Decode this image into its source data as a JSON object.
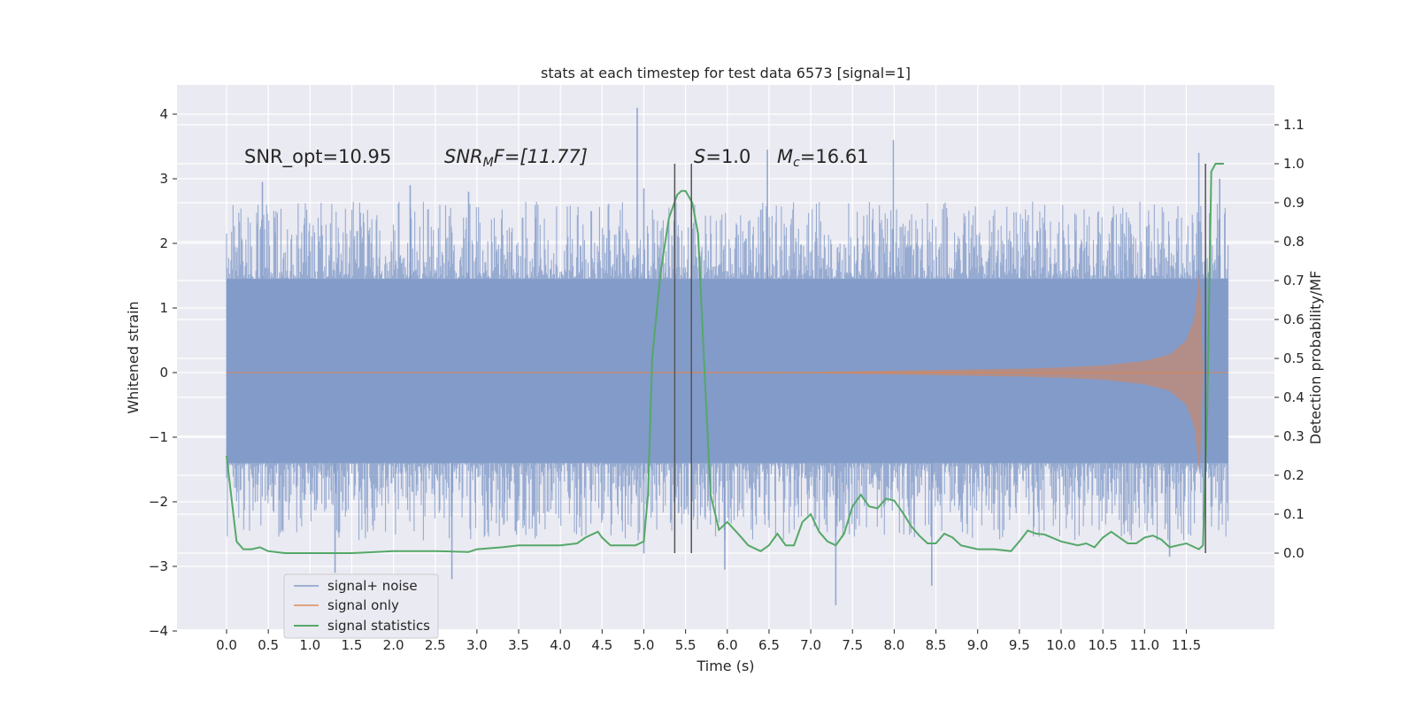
{
  "chart_data": {
    "type": "line",
    "title": "stats at each timestep for test data 6573 [signal=1]",
    "xlabel": "Time (s)",
    "ylabel": "Whitened strain",
    "ylabel_right": "Detection probability/MF",
    "xlim": [
      -0.5,
      12.7
    ],
    "ylim": [
      -4.0,
      4.4
    ],
    "ylim_right": [
      -0.2,
      1.2
    ],
    "x_ticks": [
      0.0,
      0.5,
      1.0,
      1.5,
      2.0,
      2.5,
      3.0,
      3.5,
      4.0,
      4.5,
      5.0,
      5.5,
      6.0,
      6.5,
      7.0,
      7.5,
      8.0,
      8.5,
      9.0,
      9.5,
      10.0,
      10.5,
      11.0,
      11.5
    ],
    "x_tick_labels": [
      "0.0",
      "0.5",
      "1.0",
      "1.5",
      "2.0",
      "2.5",
      "3.0",
      "3.5",
      "4.0",
      "4.5",
      "5.0",
      "5.5",
      "6.0",
      "6.5",
      "7.0",
      "7.5",
      "8.0",
      "8.5",
      "9.0",
      "9.5",
      "10.0",
      "10.5",
      "11.0",
      "11.5"
    ],
    "y_ticks": [
      -4,
      -3,
      -2,
      -1,
      0,
      1,
      2,
      3,
      4
    ],
    "y_tick_labels": [
      "−4",
      "−3",
      "−2",
      "−1",
      "0",
      "1",
      "2",
      "3",
      "4"
    ],
    "y_right_ticks": [
      0.0,
      0.1,
      0.2,
      0.3,
      0.4,
      0.5,
      0.6,
      0.7,
      0.8,
      0.9,
      1.0,
      1.1
    ],
    "y_right_tick_labels": [
      "0.0",
      "0.1",
      "0.2",
      "0.3",
      "0.4",
      "0.5",
      "0.6",
      "0.7",
      "0.8",
      "0.9",
      "1.0",
      "1.1"
    ],
    "grid": true,
    "legend_position": "lower-left",
    "annotations": {
      "snr_opt": "SNR_opt=10.95",
      "snr_mf_main": "SNR",
      "snr_mf_sub": "M",
      "snr_mf_rest": "F=[11.77]",
      "s_main": "S",
      "s_rest": "=1.0",
      "mc_main": "M",
      "mc_sub": "c",
      "mc_rest": "=16.61"
    },
    "vertical_markers": [
      {
        "x": 5.37,
        "y_range": [
          0.0,
          1.0
        ]
      },
      {
        "x": 5.57,
        "y_range": [
          0.0,
          1.0
        ]
      },
      {
        "x": 11.73,
        "y_range": [
          0.0,
          1.0
        ]
      }
    ],
    "series": [
      {
        "name": "signal+ noise",
        "axis": "left",
        "color": "#7b95c6",
        "x_range": [
          0.0,
          12.0
        ],
        "core_envelope": [
          -1.4,
          1.45
        ],
        "notable_peaks": [
          {
            "x": 0.43,
            "y": 2.95
          },
          {
            "x": 2.2,
            "y": 2.9
          },
          {
            "x": 2.9,
            "y": 2.8
          },
          {
            "x": 4.92,
            "y": 4.1
          },
          {
            "x": 5.0,
            "y": 2.85
          },
          {
            "x": 6.48,
            "y": 3.45
          },
          {
            "x": 7.99,
            "y": 3.6
          },
          {
            "x": 11.65,
            "y": 3.4
          },
          {
            "x": 11.9,
            "y": 3.0
          },
          {
            "x": 1.3,
            "y": -3.1
          },
          {
            "x": 2.7,
            "y": -3.2
          },
          {
            "x": 5.0,
            "y": -2.8
          },
          {
            "x": 5.97,
            "y": -3.05
          },
          {
            "x": 7.3,
            "y": -3.6
          },
          {
            "x": 8.45,
            "y": -3.3
          },
          {
            "x": 11.3,
            "y": -2.85
          }
        ]
      },
      {
        "name": "signal only",
        "axis": "left",
        "color": "#dd8452",
        "x": [
          0.0,
          7.0,
          8.0,
          9.0,
          9.5,
          10.0,
          10.5,
          11.0,
          11.3,
          11.5,
          11.6,
          11.66,
          11.7
        ],
        "envelope": [
          0.0,
          0.01,
          0.03,
          0.05,
          0.06,
          0.08,
          0.11,
          0.18,
          0.28,
          0.5,
          0.85,
          1.65,
          0.0
        ]
      },
      {
        "name": "signal statistics",
        "axis": "right",
        "color": "#55a868",
        "x": [
          0.0,
          0.12,
          0.2,
          0.3,
          0.4,
          0.5,
          0.7,
          0.9,
          1.0,
          1.3,
          1.5,
          1.7,
          2.0,
          2.5,
          2.7,
          2.9,
          3.0,
          3.3,
          3.5,
          3.7,
          4.0,
          4.2,
          4.3,
          4.45,
          4.5,
          4.6,
          4.7,
          4.9,
          5.0,
          5.05,
          5.1,
          5.2,
          5.3,
          5.4,
          5.45,
          5.5,
          5.58,
          5.65,
          5.72,
          5.8,
          5.9,
          5.95,
          6.0,
          6.15,
          6.25,
          6.4,
          6.5,
          6.6,
          6.7,
          6.8,
          6.9,
          7.0,
          7.1,
          7.2,
          7.3,
          7.4,
          7.5,
          7.6,
          7.7,
          7.8,
          7.9,
          8.0,
          8.1,
          8.2,
          8.3,
          8.4,
          8.5,
          8.6,
          8.7,
          8.8,
          9.0,
          9.2,
          9.4,
          9.5,
          9.6,
          9.7,
          9.8,
          10.0,
          10.1,
          10.2,
          10.3,
          10.4,
          10.5,
          10.6,
          10.7,
          10.8,
          10.9,
          11.0,
          11.1,
          11.2,
          11.3,
          11.4,
          11.5,
          11.6,
          11.65,
          11.7,
          11.75,
          11.8,
          11.85,
          11.95
        ],
        "values": [
          0.25,
          0.03,
          0.01,
          0.01,
          0.015,
          0.005,
          0.0,
          0.0,
          0.0,
          0.0,
          0.0,
          0.002,
          0.005,
          0.005,
          0.004,
          0.003,
          0.01,
          0.015,
          0.02,
          0.02,
          0.02,
          0.025,
          0.04,
          0.055,
          0.04,
          0.02,
          0.02,
          0.02,
          0.03,
          0.15,
          0.5,
          0.72,
          0.86,
          0.92,
          0.93,
          0.93,
          0.9,
          0.82,
          0.5,
          0.15,
          0.06,
          0.07,
          0.08,
          0.045,
          0.02,
          0.005,
          0.02,
          0.05,
          0.02,
          0.02,
          0.08,
          0.1,
          0.055,
          0.03,
          0.02,
          0.05,
          0.12,
          0.15,
          0.12,
          0.115,
          0.14,
          0.135,
          0.105,
          0.07,
          0.045,
          0.025,
          0.025,
          0.05,
          0.04,
          0.02,
          0.01,
          0.01,
          0.005,
          0.03,
          0.058,
          0.05,
          0.048,
          0.03,
          0.025,
          0.02,
          0.025,
          0.015,
          0.04,
          0.055,
          0.04,
          0.025,
          0.025,
          0.04,
          0.045,
          0.035,
          0.015,
          0.02,
          0.025,
          0.015,
          0.01,
          0.02,
          0.35,
          0.98,
          1.0,
          1.0
        ]
      }
    ]
  }
}
